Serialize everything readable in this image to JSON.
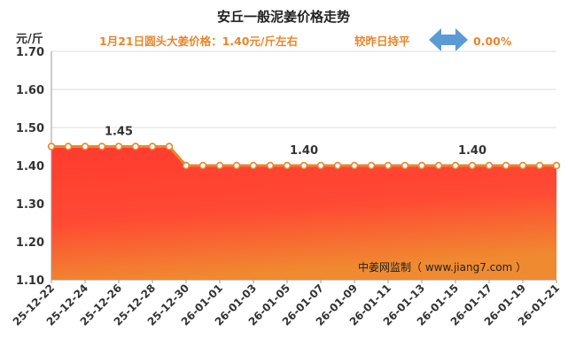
{
  "chart_data": {
    "type": "area",
    "title": "安丘一般泥姜价格走势",
    "subtitle_price": "1月21日圆头大姜价格：1.40元/斤左右",
    "subtitle_change": "较昨日持平",
    "subtitle_percent": "0.00%",
    "y_unit": "元/斤",
    "watermark": "中姜网监制（ www.jiang7.com ）",
    "ylim": [
      1.1,
      1.7
    ],
    "yticks": [
      "1.10",
      "1.20",
      "1.30",
      "1.40",
      "1.50",
      "1.60",
      "1.70"
    ],
    "grid": true,
    "x": [
      "25-12-22",
      "25-12-23",
      "25-12-24",
      "25-12-25",
      "25-12-26",
      "25-12-27",
      "25-12-28",
      "25-12-29",
      "25-12-30",
      "25-12-31",
      "26-01-01",
      "26-01-02",
      "26-01-03",
      "26-01-04",
      "26-01-05",
      "26-01-06",
      "26-01-07",
      "26-01-08",
      "26-01-09",
      "26-01-10",
      "26-01-11",
      "26-01-12",
      "26-01-13",
      "26-01-14",
      "26-01-15",
      "26-01-16",
      "26-01-17",
      "26-01-18",
      "26-01-19",
      "26-01-20",
      "26-01-21"
    ],
    "xticks": [
      "25-12-22",
      "25-12-24",
      "25-12-26",
      "25-12-28",
      "25-12-30",
      "26-01-01",
      "26-01-03",
      "26-01-05",
      "26-01-07",
      "26-01-09",
      "26-01-11",
      "26-01-13",
      "26-01-15",
      "26-01-17",
      "26-01-19",
      "26-01-21"
    ],
    "series": [
      {
        "values": [
          1.45,
          1.45,
          1.45,
          1.45,
          1.45,
          1.45,
          1.45,
          1.45,
          1.4,
          1.4,
          1.4,
          1.4,
          1.4,
          1.4,
          1.4,
          1.4,
          1.4,
          1.4,
          1.4,
          1.4,
          1.4,
          1.4,
          1.4,
          1.4,
          1.4,
          1.4,
          1.4,
          1.4,
          1.4,
          1.4,
          1.4
        ]
      }
    ],
    "data_labels": [
      {
        "x": "25-12-26",
        "text": "1.45"
      },
      {
        "x": "26-01-06",
        "text": "1.40"
      },
      {
        "x": "26-01-16",
        "text": "1.40"
      }
    ],
    "colors": {
      "line": "#e8862c",
      "marker_fill": "#ffffff",
      "area_top": "#ff3b2e",
      "area_bottom": "#f08a30",
      "arrow": "#5b9bd5",
      "grid": "#dddddd"
    }
  }
}
